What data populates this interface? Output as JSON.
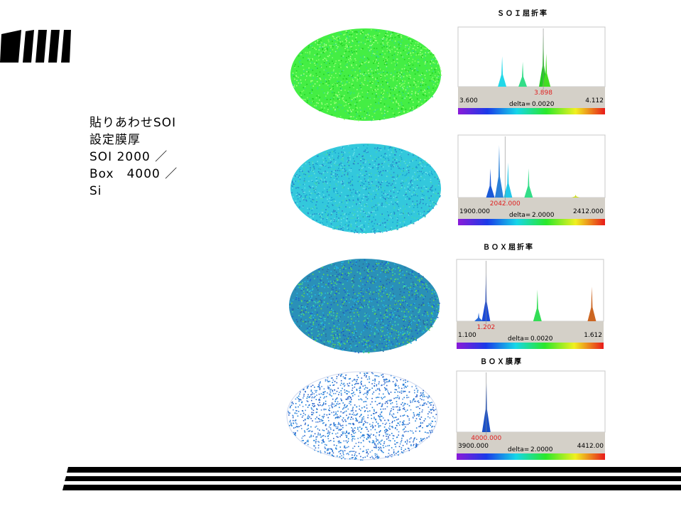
{
  "sidebar": {
    "lines": [
      "貼りあわせSOI",
      "設定膜厚",
      "SOI 2000 ／",
      "Box　4000 ／",
      "Si"
    ]
  },
  "panels": [
    {
      "title": "ＳＯＩ屈折率",
      "min": "3.600",
      "marker": "3.898",
      "max": "4.112",
      "delta_label": "delta=",
      "delta": "0.0020"
    },
    {
      "min": "1900.000",
      "marker": "2042.000",
      "max": "2412.000",
      "delta_label": "delta=",
      "delta": "2.0000"
    },
    {
      "title": "ＢＯＸ屈折率",
      "min": "1.100",
      "marker": "1.202",
      "max": "1.612",
      "delta_label": "delta=",
      "delta": "0.0020"
    },
    {
      "title": "ＢＯＸ膜厚",
      "min": "3900.000",
      "marker": "4000.000",
      "max": "4412.00",
      "delta_label": "delta=",
      "delta": "2.0000"
    }
  ]
}
